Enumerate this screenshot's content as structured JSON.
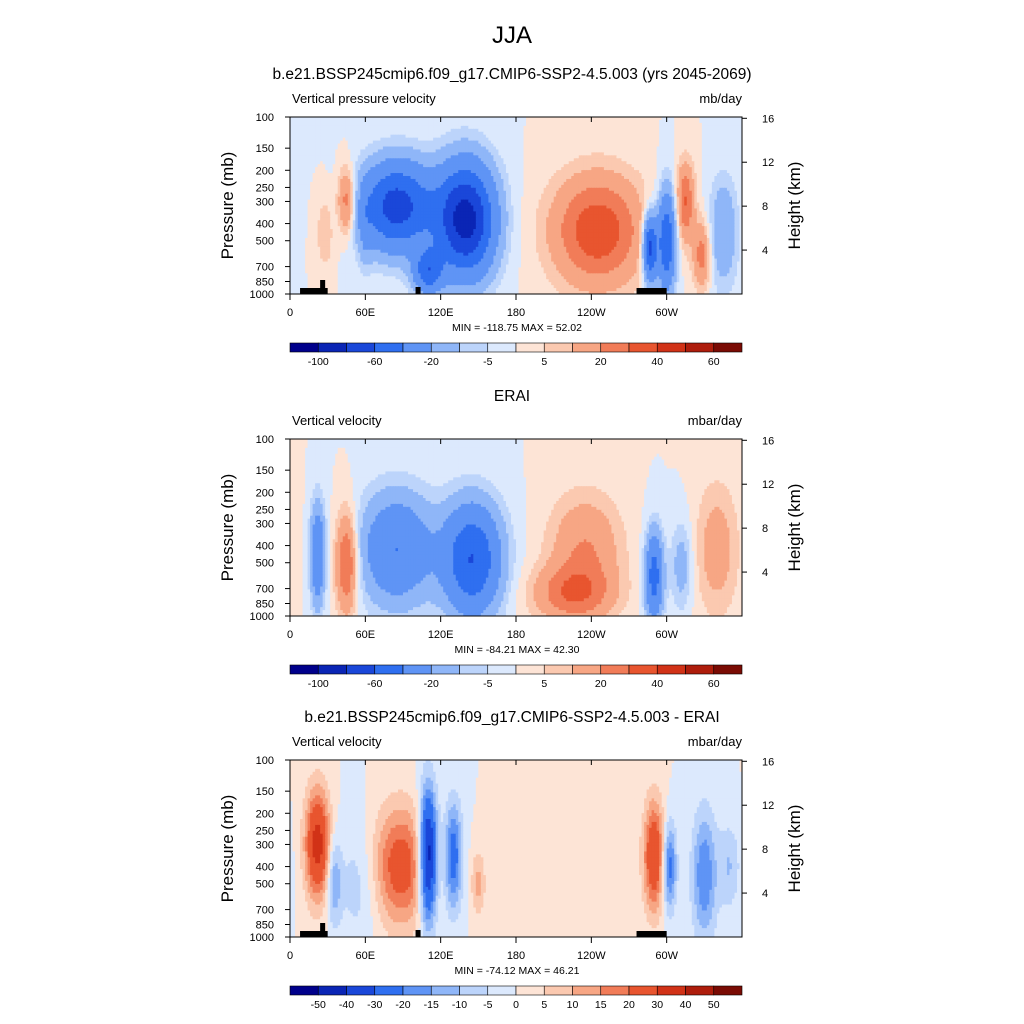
{
  "page": {
    "title": "JJA"
  },
  "chart_data": [
    {
      "type": "heatmap",
      "title": "b.e21.BSSP245cmip6.f09_g17.CMIP6-SSP2-4.5.003 (yrs 2045-2069)",
      "variable": "Vertical pressure velocity",
      "units": "mb/day",
      "ylabel": "Pressure (mb)",
      "ylabel_right": "Height (km)",
      "x_ticks": [
        "0",
        "60E",
        "120E",
        "180",
        "120W",
        "60W"
      ],
      "y_ticks": [
        "100",
        "150",
        "200",
        "250",
        "300",
        "400",
        "500",
        "700",
        "850",
        "1000"
      ],
      "y_right_ticks": [
        "4",
        "8",
        "12",
        "16"
      ],
      "stats": "MIN = -118.75  MAX =  52.02",
      "colorbar_labels": [
        "-100",
        "-60",
        "-20",
        "-5",
        "5",
        "20",
        "40",
        "60"
      ],
      "colorbar_colors": [
        "#00008b",
        "#0a25b5",
        "#1a47d9",
        "#2f6ff0",
        "#5f94f5",
        "#8fb6f8",
        "#bcd4fb",
        "#dce9fd",
        "#fde4d6",
        "#fbc9b0",
        "#f7a684",
        "#f17c58",
        "#e8552f",
        "#d13217",
        "#ae1d0c",
        "#7a0b04"
      ],
      "features": [
        {
          "lon": 28,
          "p": 450,
          "w": 5,
          "h": 0.35,
          "value": 10
        },
        {
          "lon": 45,
          "p": 300,
          "w": 5,
          "h": 0.3,
          "value": 30
        },
        {
          "lon": 60,
          "p": 450,
          "w": 4,
          "h": 0.35,
          "value": -10
        },
        {
          "lon": 85,
          "p": 320,
          "w": 20,
          "h": 0.4,
          "value": -70
        },
        {
          "lon": 140,
          "p": 380,
          "w": 16,
          "h": 0.5,
          "value": -90
        },
        {
          "lon": 110,
          "p": 750,
          "w": 8,
          "h": 0.2,
          "value": -50
        },
        {
          "lon": 245,
          "p": 440,
          "w": 25,
          "h": 0.5,
          "value": 38
        },
        {
          "lon": 287,
          "p": 550,
          "w": 4,
          "h": 0.3,
          "value": -70
        },
        {
          "lon": 300,
          "p": 500,
          "w": 5,
          "h": 0.45,
          "value": -60
        },
        {
          "lon": 315,
          "p": 300,
          "w": 5,
          "h": 0.35,
          "value": 30
        },
        {
          "lon": 328,
          "p": 600,
          "w": 5,
          "h": 0.3,
          "value": 25
        },
        {
          "lon": 345,
          "p": 450,
          "w": 8,
          "h": 0.5,
          "value": -20
        }
      ]
    },
    {
      "type": "heatmap",
      "title": "ERAI",
      "variable": "Vertical velocity",
      "units": "mbar/day",
      "ylabel": "Pressure (mb)",
      "ylabel_right": "Height (km)",
      "x_ticks": [
        "0",
        "60E",
        "120E",
        "180",
        "120W",
        "60W"
      ],
      "y_ticks": [
        "100",
        "150",
        "200",
        "250",
        "300",
        "400",
        "500",
        "700",
        "850",
        "1000"
      ],
      "y_right_ticks": [
        "4",
        "8",
        "12",
        "16"
      ],
      "stats": "MIN = -84.21  MAX =  42.30",
      "colorbar_labels": [
        "-100",
        "-60",
        "-20",
        "-5",
        "5",
        "20",
        "40",
        "60"
      ],
      "colorbar_colors": [
        "#00008b",
        "#0a25b5",
        "#1a47d9",
        "#2f6ff0",
        "#5f94f5",
        "#8fb6f8",
        "#bcd4fb",
        "#dce9fd",
        "#fde4d6",
        "#fbc9b0",
        "#f7a684",
        "#f17c58",
        "#e8552f",
        "#d13217",
        "#ae1d0c",
        "#7a0b04"
      ],
      "features": [
        {
          "lon": 22,
          "p": 450,
          "w": 4,
          "h": 0.45,
          "value": -40
        },
        {
          "lon": 45,
          "p": 500,
          "w": 6,
          "h": 0.45,
          "value": 35
        },
        {
          "lon": 85,
          "p": 420,
          "w": 20,
          "h": 0.5,
          "value": -40
        },
        {
          "lon": 145,
          "p": 480,
          "w": 16,
          "h": 0.5,
          "value": -60
        },
        {
          "lon": 235,
          "p": 420,
          "w": 20,
          "h": 0.5,
          "value": 20
        },
        {
          "lon": 225,
          "p": 750,
          "w": 22,
          "h": 0.25,
          "value": 25
        },
        {
          "lon": 290,
          "p": 600,
          "w": 5,
          "h": 0.4,
          "value": -50
        },
        {
          "lon": 312,
          "p": 520,
          "w": 6,
          "h": 0.4,
          "value": -15
        },
        {
          "lon": 340,
          "p": 420,
          "w": 12,
          "h": 0.6,
          "value": 15
        }
      ]
    },
    {
      "type": "heatmap",
      "title": "b.e21.BSSP245cmip6.f09_g17.CMIP6-SSP2-4.5.003 - ERAI",
      "variable": "Vertical velocity",
      "units": "mbar/day",
      "ylabel": "Pressure (mb)",
      "ylabel_right": "Height (km)",
      "x_ticks": [
        "0",
        "60E",
        "120E",
        "180",
        "120W",
        "60W"
      ],
      "y_ticks": [
        "100",
        "150",
        "200",
        "250",
        "300",
        "400",
        "500",
        "700",
        "850",
        "1000"
      ],
      "y_right_ticks": [
        "4",
        "8",
        "12",
        "16"
      ],
      "stats": "MIN = -74.12  MAX =  46.21",
      "colorbar_labels": [
        "-50",
        "-40",
        "-30",
        "-20",
        "-15",
        "-10",
        "-5",
        "0",
        "5",
        "10",
        "15",
        "20",
        "30",
        "40",
        "50"
      ],
      "colorbar_colors": [
        "#00008b",
        "#0a25b5",
        "#1a47d9",
        "#2f6ff0",
        "#5f94f5",
        "#8fb6f8",
        "#bcd4fb",
        "#dce9fd",
        "#fde4d6",
        "#fbc9b0",
        "#f7a684",
        "#f17c58",
        "#e8552f",
        "#d13217",
        "#ae1d0c",
        "#7a0b04"
      ],
      "features": [
        {
          "lon": 22,
          "p": 300,
          "w": 7,
          "h": 0.5,
          "value": 35
        },
        {
          "lon": 35,
          "p": 480,
          "w": 4,
          "h": 0.4,
          "value": -15
        },
        {
          "lon": 55,
          "p": 500,
          "w": 12,
          "h": 0.6,
          "value": -8
        },
        {
          "lon": 88,
          "p": 400,
          "w": 16,
          "h": 0.55,
          "value": 25
        },
        {
          "lon": 110,
          "p": 350,
          "w": 5,
          "h": 0.6,
          "value": -50
        },
        {
          "lon": 130,
          "p": 350,
          "w": 5,
          "h": 0.5,
          "value": -25
        },
        {
          "lon": 150,
          "p": 500,
          "w": 4,
          "h": 0.3,
          "value": 12
        },
        {
          "lon": 290,
          "p": 350,
          "w": 6,
          "h": 0.5,
          "value": 30
        },
        {
          "lon": 302,
          "p": 400,
          "w": 4,
          "h": 0.4,
          "value": -25
        },
        {
          "lon": 330,
          "p": 450,
          "w": 7,
          "h": 0.6,
          "value": -20
        },
        {
          "lon": 350,
          "p": 400,
          "w": 6,
          "h": 0.4,
          "value": -10
        }
      ]
    }
  ]
}
